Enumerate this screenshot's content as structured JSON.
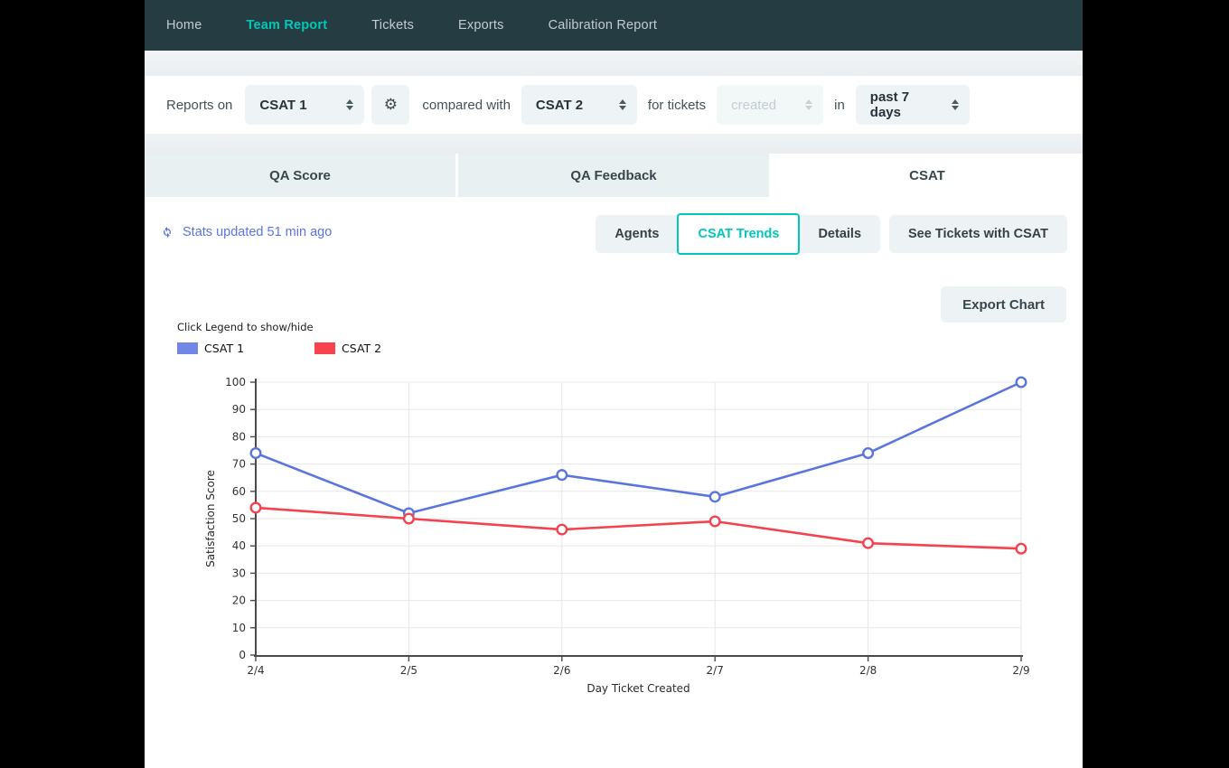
{
  "nav": {
    "items": [
      {
        "label": "Home",
        "active": false
      },
      {
        "label": "Team Report",
        "active": true
      },
      {
        "label": "Tickets",
        "active": false
      },
      {
        "label": "Exports",
        "active": false
      },
      {
        "label": "Calibration Report",
        "active": false
      }
    ]
  },
  "filter_bar": {
    "reports_on_label": "Reports on",
    "report_select_value": "CSAT 1",
    "gear_icon": "gear-icon",
    "compared_with_label": "compared with",
    "compare_select_value": "CSAT 2",
    "for_tickets_label": "for tickets",
    "tickets_state_select_value": "created",
    "tickets_state_disabled": true,
    "in_label": "in",
    "date_range_select_value": "past 7 days"
  },
  "tabs": [
    {
      "label": "QA Score",
      "active": false
    },
    {
      "label": "QA Feedback",
      "active": false
    },
    {
      "label": "CSAT",
      "active": true
    }
  ],
  "toolbar": {
    "stats_updated_text": "Stats updated 51 min ago",
    "refresh_icon": "refresh-icon",
    "view_buttons": [
      {
        "label": "Agents",
        "active": false
      },
      {
        "label": "CSAT Trends",
        "active": true
      },
      {
        "label": "Details",
        "active": false
      }
    ],
    "see_tickets_label": "See Tickets with CSAT",
    "export_chart_label": "Export Chart"
  },
  "chart_data": {
    "type": "line",
    "note": "Click Legend to show/hide",
    "x": [
      "2/4",
      "2/5",
      "2/6",
      "2/7",
      "2/8",
      "2/9"
    ],
    "series": [
      {
        "name": "CSAT 1",
        "color": "#5b75de",
        "swatch": "#7286e5",
        "values": [
          74,
          52,
          66,
          58,
          74,
          100
        ]
      },
      {
        "name": "CSAT 2",
        "color": "#f4434f",
        "swatch": "#f8424e",
        "values": [
          54,
          50,
          46,
          49,
          41,
          39
        ]
      }
    ],
    "xlabel": "Day Ticket Created",
    "ylabel": "Satisfaction Score",
    "ylim": [
      0,
      100
    ],
    "ytick_step": 10,
    "grid": true,
    "legend_position": "top-left",
    "marker": "open-circle"
  },
  "colors": {
    "nav_bg": "#263c43",
    "accent_teal": "#00c8b8",
    "link_blue": "#5b73e8",
    "control_bg": "#eef4f6",
    "tab_bg": "#e9f0f2"
  }
}
